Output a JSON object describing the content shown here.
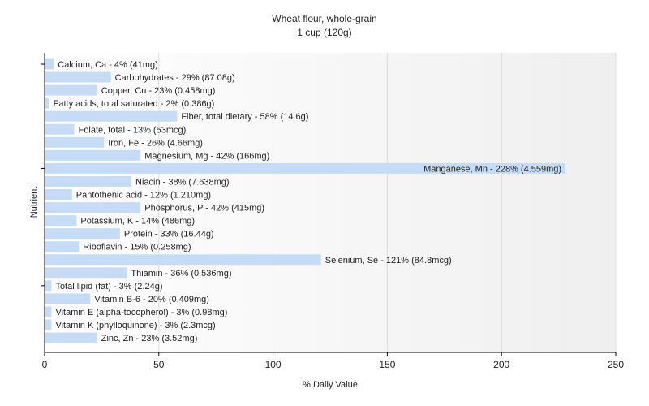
{
  "chart_data": {
    "type": "bar",
    "orientation": "horizontal",
    "title": "Wheat flour, whole-grain",
    "subtitle": "1 cup (120g)",
    "xlabel": "% Daily Value",
    "ylabel": "Nutrient",
    "xlim": [
      0,
      250
    ],
    "xticks": [
      0,
      50,
      100,
      150,
      200,
      250
    ],
    "grid": true,
    "bar_color": "#c6dcf6",
    "categories": [
      "Calcium, Ca",
      "Carbohydrates",
      "Copper, Cu",
      "Fatty acids, total saturated",
      "Fiber, total dietary",
      "Folate, total",
      "Iron, Fe",
      "Magnesium, Mg",
      "Manganese, Mn",
      "Niacin",
      "Pantothenic acid",
      "Phosphorus, P",
      "Potassium, K",
      "Protein",
      "Riboflavin",
      "Selenium, Se",
      "Thiamin",
      "Total lipid (fat)",
      "Vitamin B-6",
      "Vitamin E (alpha-tocopherol)",
      "Vitamin K (phylloquinone)",
      "Zinc, Zn"
    ],
    "values": [
      4,
      29,
      23,
      2,
      58,
      13,
      26,
      42,
      228,
      38,
      12,
      42,
      14,
      33,
      15,
      121,
      36,
      3,
      20,
      3,
      3,
      23
    ],
    "labels": [
      "Calcium, Ca - 4% (41mg)",
      "Carbohydrates - 29% (87.08g)",
      "Copper, Cu - 23% (0.458mg)",
      "Fatty acids, total saturated - 2% (0.386g)",
      "Fiber, total dietary - 58% (14.6g)",
      "Folate, total - 13% (53mcg)",
      "Iron, Fe - 26% (4.66mg)",
      "Magnesium, Mg - 42% (166mg)",
      "Manganese, Mn - 228% (4.559mg)",
      "Niacin - 38% (7.638mg)",
      "Pantothenic acid - 12% (1.210mg)",
      "Phosphorus, P - 42% (415mg)",
      "Potassium, K - 14% (486mg)",
      "Protein - 33% (16.44g)",
      "Riboflavin - 15% (0.258mg)",
      "Selenium, Se - 121% (84.8mcg)",
      "Thiamin - 36% (0.536mg)",
      "Total lipid (fat) - 3% (2.24g)",
      "Vitamin B-6 - 20% (0.409mg)",
      "Vitamin E (alpha-tocopherol) - 3% (0.98mg)",
      "Vitamin K (phylloquinone) - 3% (2.3mcg)",
      "Zinc, Zn - 23% (3.52mg)"
    ]
  }
}
